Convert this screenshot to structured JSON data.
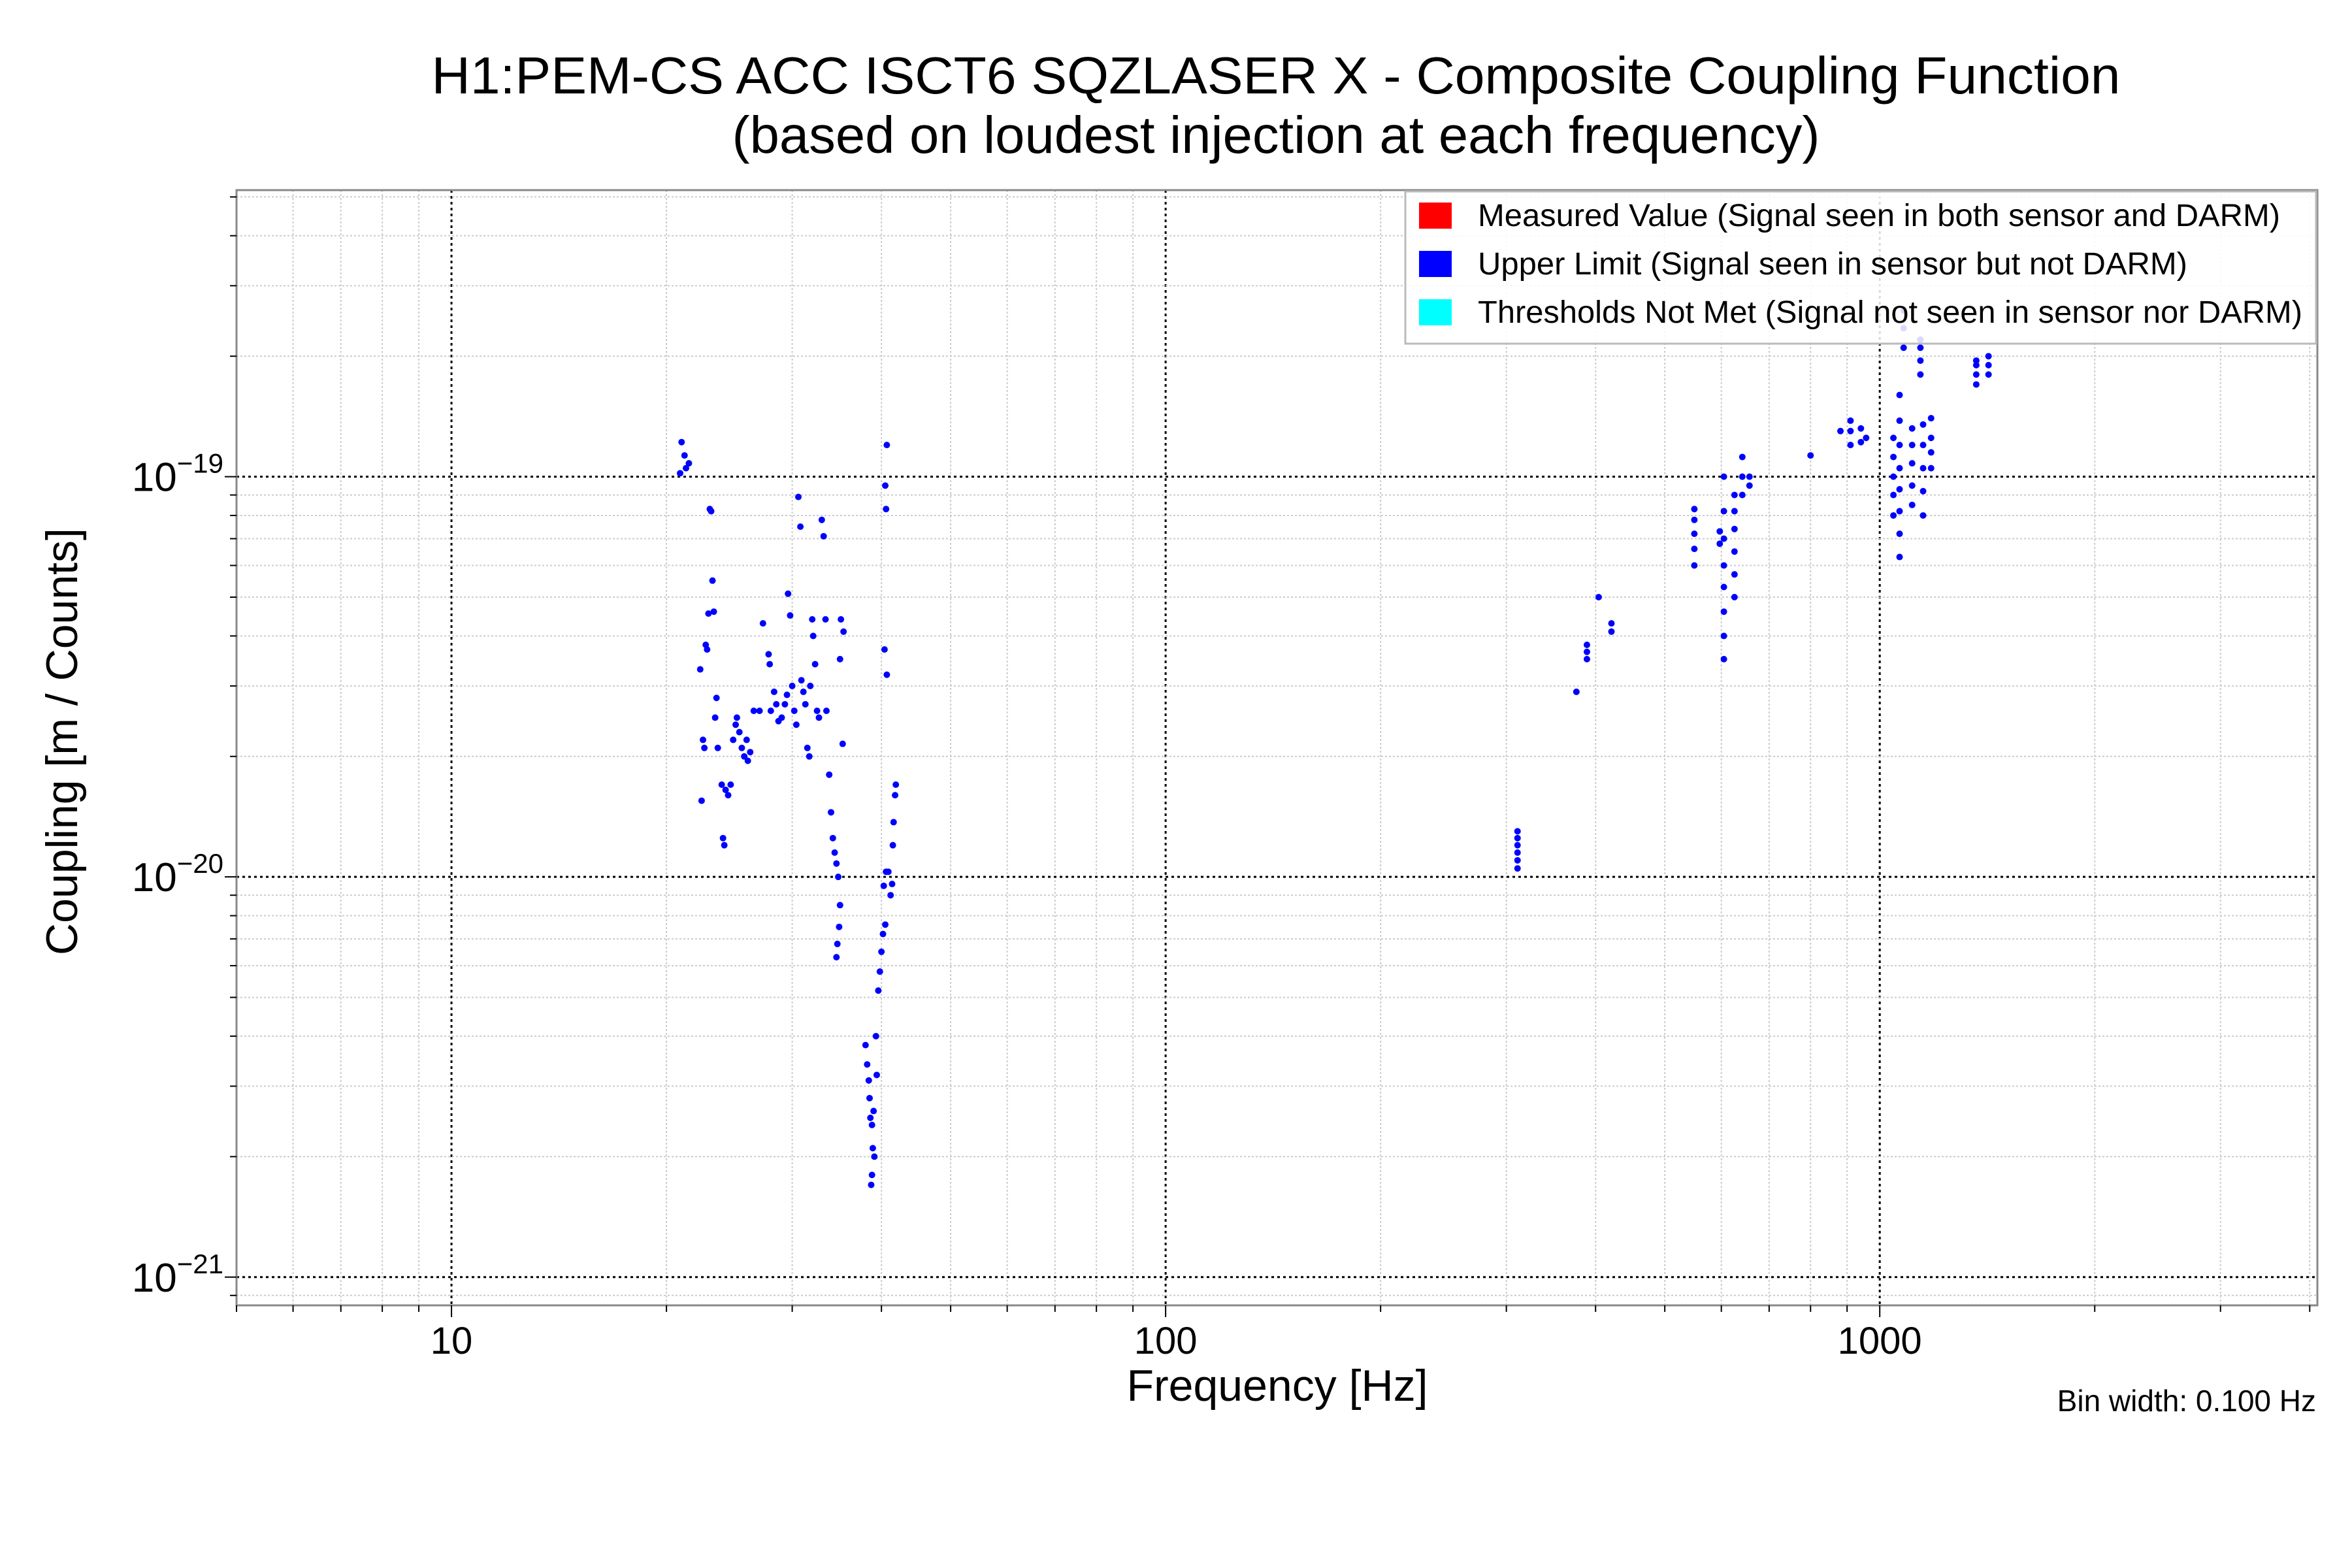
{
  "chart_data": {
    "type": "scatter",
    "title": "H1:PEM-CS ACC ISCT6 SQZLASER X - Composite Coupling Function",
    "subtitle": "(based on loudest injection at each frequency)",
    "xlabel": "Frequency [Hz]",
    "ylabel": "Coupling [m / Counts]",
    "xscale": "log",
    "yscale": "log",
    "xlim": [
      5,
      4100
    ],
    "ylim": [
      8.5e-22,
      5.2e-19
    ],
    "x_ticks": [
      {
        "value": 10,
        "label": "10"
      },
      {
        "value": 100,
        "label": "100"
      },
      {
        "value": 1000,
        "label": "1000"
      }
    ],
    "y_ticks": [
      {
        "value": 1e-19,
        "base": "10",
        "exp": "−19"
      },
      {
        "value": 1e-20,
        "base": "10",
        "exp": "−20"
      },
      {
        "value": 1e-21,
        "base": "10",
        "exp": "−21"
      }
    ],
    "grid": true,
    "legend_position": "top-right",
    "footnote": "Bin width: 0.100 Hz",
    "series": [
      {
        "name": "Measured Value (Signal seen in both sensor and DARM)",
        "color": "#ff0000",
        "points": []
      },
      {
        "name": "Upper Limit (Signal seen in sensor but not DARM)",
        "color": "#0000ff",
        "points": [
          [
            21.0,
            1.22e-19
          ],
          [
            21.2,
            1.13e-19
          ],
          [
            21.5,
            1.08e-19
          ],
          [
            20.9,
            1.02e-19
          ],
          [
            21.3,
            1.05e-19
          ],
          [
            23.0,
            8.3e-20
          ],
          [
            23.1,
            8.2e-20
          ],
          [
            23.2,
            5.5e-20
          ],
          [
            22.9,
            4.55e-20
          ],
          [
            23.3,
            4.6e-20
          ],
          [
            22.7,
            3.8e-20
          ],
          [
            22.8,
            3.7e-20
          ],
          [
            22.3,
            3.3e-20
          ],
          [
            22.5,
            2.2e-20
          ],
          [
            22.6,
            2.1e-20
          ],
          [
            22.4,
            1.55e-20
          ],
          [
            23.5,
            2.8e-20
          ],
          [
            23.4,
            2.5e-20
          ],
          [
            23.6,
            2.1e-20
          ],
          [
            23.9,
            1.7e-20
          ],
          [
            24.2,
            1.65e-20
          ],
          [
            24.0,
            1.25e-20
          ],
          [
            24.1,
            1.2e-20
          ],
          [
            24.4,
            1.6e-20
          ],
          [
            24.6,
            1.7e-20
          ],
          [
            24.8,
            2.2e-20
          ],
          [
            25.0,
            2.4e-20
          ],
          [
            25.1,
            2.5e-20
          ],
          [
            25.3,
            2.3e-20
          ],
          [
            25.5,
            2.1e-20
          ],
          [
            25.7,
            2e-20
          ],
          [
            25.9,
            2.2e-20
          ],
          [
            26.0,
            1.95e-20
          ],
          [
            26.2,
            2.05e-20
          ],
          [
            26.5,
            2.6e-20
          ],
          [
            27.0,
            2.6e-20
          ],
          [
            27.3,
            4.3e-20
          ],
          [
            27.8,
            3.6e-20
          ],
          [
            27.9,
            3.4e-20
          ],
          [
            28.0,
            2.6e-20
          ],
          [
            28.3,
            2.9e-20
          ],
          [
            28.5,
            2.7e-20
          ],
          [
            28.7,
            2.45e-20
          ],
          [
            29.0,
            2.5e-20
          ],
          [
            29.3,
            2.7e-20
          ],
          [
            29.5,
            2.85e-20
          ],
          [
            29.6,
            5.1e-20
          ],
          [
            29.8,
            4.5e-20
          ],
          [
            30.0,
            3e-20
          ],
          [
            30.2,
            2.6e-20
          ],
          [
            30.4,
            2.4e-20
          ],
          [
            30.6,
            8.9e-20
          ],
          [
            30.8,
            7.5e-20
          ],
          [
            30.9,
            3.1e-20
          ],
          [
            31.1,
            2.9e-20
          ],
          [
            31.3,
            2.7e-20
          ],
          [
            31.5,
            2.1e-20
          ],
          [
            31.7,
            2e-20
          ],
          [
            31.8,
            3e-20
          ],
          [
            32.0,
            4.4e-20
          ],
          [
            32.1,
            4e-20
          ],
          [
            32.3,
            3.4e-20
          ],
          [
            32.5,
            2.6e-20
          ],
          [
            32.7,
            2.5e-20
          ],
          [
            33.0,
            7.8e-20
          ],
          [
            33.2,
            7.1e-20
          ],
          [
            33.4,
            4.4e-20
          ],
          [
            33.5,
            2.6e-20
          ],
          [
            33.8,
            1.8e-20
          ],
          [
            34.0,
            1.45e-20
          ],
          [
            34.2,
            1.25e-20
          ],
          [
            34.4,
            1.15e-20
          ],
          [
            34.6,
            1.08e-20
          ],
          [
            34.8,
            1e-20
          ],
          [
            35.0,
            3.5e-20
          ],
          [
            35.1,
            4.4e-20
          ],
          [
            35.3,
            2.15e-20
          ],
          [
            35.4,
            4.1e-20
          ],
          [
            35.0,
            8.5e-21
          ],
          [
            34.9,
            7.5e-21
          ],
          [
            34.7,
            6.8e-21
          ],
          [
            34.6,
            6.3e-21
          ],
          [
            38.0,
            3.8e-21
          ],
          [
            38.2,
            3.4e-21
          ],
          [
            38.4,
            3.1e-21
          ],
          [
            38.5,
            2.8e-21
          ],
          [
            38.6,
            2.5e-21
          ],
          [
            38.8,
            2.4e-21
          ],
          [
            39.0,
            2.6e-21
          ],
          [
            38.9,
            2.1e-21
          ],
          [
            39.1,
            2e-21
          ],
          [
            38.8,
            1.8e-21
          ],
          [
            38.7,
            1.7e-21
          ],
          [
            39.3,
            4e-21
          ],
          [
            39.4,
            3.2e-21
          ],
          [
            39.6,
            5.2e-21
          ],
          [
            39.8,
            5.8e-21
          ],
          [
            40.0,
            6.5e-21
          ],
          [
            40.2,
            7.2e-21
          ],
          [
            40.5,
            7.6e-21
          ],
          [
            40.3,
            9.5e-21
          ],
          [
            40.6,
            1.03e-20
          ],
          [
            40.9,
            1.03e-20
          ],
          [
            41.2,
            9e-21
          ],
          [
            41.4,
            9.6e-21
          ],
          [
            41.5,
            1.2e-20
          ],
          [
            41.6,
            1.37e-20
          ],
          [
            41.8,
            1.6e-20
          ],
          [
            41.9,
            1.7e-20
          ],
          [
            40.7,
            1.2e-19
          ],
          [
            40.5,
            9.5e-20
          ],
          [
            40.6,
            8.3e-20
          ],
          [
            40.4,
            3.7e-20
          ],
          [
            40.7,
            3.2e-20
          ],
          [
            311,
            1.05e-20
          ],
          [
            311,
            1.1e-20
          ],
          [
            311,
            1.15e-20
          ],
          [
            311,
            1.2e-20
          ],
          [
            311,
            1.25e-20
          ],
          [
            311,
            1.3e-20
          ],
          [
            376,
            2.9e-20
          ],
          [
            389,
            3.5e-20
          ],
          [
            389,
            3.65e-20
          ],
          [
            389,
            3.8e-20
          ],
          [
            404,
            5e-20
          ],
          [
            421,
            4.1e-20
          ],
          [
            421,
            4.3e-20
          ],
          [
            550,
            6e-20
          ],
          [
            550,
            6.6e-20
          ],
          [
            550,
            7.2e-20
          ],
          [
            550,
            7.8e-20
          ],
          [
            550,
            8.3e-20
          ],
          [
            597,
            6.8e-20
          ],
          [
            597,
            7.3e-20
          ],
          [
            605,
            3.5e-20
          ],
          [
            605,
            4e-20
          ],
          [
            605,
            4.6e-20
          ],
          [
            605,
            5.3e-20
          ],
          [
            605,
            6e-20
          ],
          [
            605,
            7e-20
          ],
          [
            605,
            8.2e-20
          ],
          [
            605,
            1e-19
          ],
          [
            626,
            5e-20
          ],
          [
            626,
            5.7e-20
          ],
          [
            626,
            6.5e-20
          ],
          [
            626,
            7.4e-20
          ],
          [
            626,
            8.2e-20
          ],
          [
            626,
            9e-20
          ],
          [
            642,
            9e-20
          ],
          [
            642,
            1e-19
          ],
          [
            642,
            1.12e-19
          ],
          [
            657,
            9.5e-20
          ],
          [
            657,
            1e-19
          ],
          [
            800,
            1.13e-19
          ],
          [
            881,
            1.3e-19
          ],
          [
            910,
            1.2e-19
          ],
          [
            910,
            1.3e-19
          ],
          [
            910,
            1.38e-19
          ],
          [
            941,
            1.22e-19
          ],
          [
            941,
            1.32e-19
          ],
          [
            957,
            1.25e-19
          ],
          [
            1045,
            8e-20
          ],
          [
            1045,
            9e-20
          ],
          [
            1045,
            1e-19
          ],
          [
            1045,
            1.12e-19
          ],
          [
            1045,
            1.25e-19
          ],
          [
            1066,
            6.3e-20
          ],
          [
            1066,
            7.2e-20
          ],
          [
            1066,
            8.2e-20
          ],
          [
            1066,
            9.3e-20
          ],
          [
            1066,
            1.05e-19
          ],
          [
            1066,
            1.2e-19
          ],
          [
            1066,
            1.38e-19
          ],
          [
            1066,
            1.6e-19
          ],
          [
            1080,
            2.1e-19
          ],
          [
            1080,
            2.35e-19
          ],
          [
            1080,
            2.6e-19
          ],
          [
            1110,
            8.5e-20
          ],
          [
            1110,
            9.5e-20
          ],
          [
            1110,
            1.08e-19
          ],
          [
            1110,
            1.2e-19
          ],
          [
            1110,
            1.32e-19
          ],
          [
            1140,
            1.8e-19
          ],
          [
            1140,
            1.95e-19
          ],
          [
            1140,
            2.1e-19
          ],
          [
            1140,
            2.2e-19
          ],
          [
            1150,
            8e-20
          ],
          [
            1150,
            9.2e-20
          ],
          [
            1150,
            1.05e-19
          ],
          [
            1150,
            1.2e-19
          ],
          [
            1150,
            1.35e-19
          ],
          [
            1180,
            1.05e-19
          ],
          [
            1180,
            1.15e-19
          ],
          [
            1180,
            1.25e-19
          ],
          [
            1180,
            1.4e-19
          ],
          [
            1365,
            1.7e-19
          ],
          [
            1365,
            1.8e-19
          ],
          [
            1365,
            1.9e-19
          ],
          [
            1365,
            1.95e-19
          ],
          [
            1420,
            1.8e-19
          ],
          [
            1420,
            1.9e-19
          ],
          [
            1420,
            2e-19
          ]
        ]
      },
      {
        "name": "Thresholds Not Met (Signal not seen in sensor nor DARM)",
        "color": "#00ffff",
        "points": []
      }
    ]
  }
}
